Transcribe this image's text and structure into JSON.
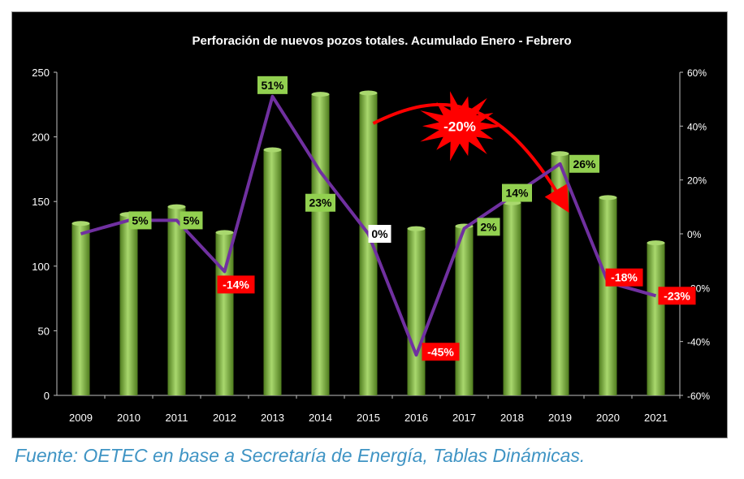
{
  "source_note": "Fuente: OETEC en base a Secretaría de Energía, Tablas Dinámicas.",
  "colors": {
    "background": "#000000",
    "bar_light": "#a9d86e",
    "bar_dark": "#4f7c1e",
    "line": "#7030a0",
    "positive_label_bg": "#92d050",
    "negative_label_bg": "#ff0000",
    "zero_label_bg": "#ffffff",
    "callout": "#ff0000"
  },
  "chart_data": {
    "type": "bar",
    "title": "Perforación de nuevos pozos totales.  Acumulado Enero - Febrero",
    "categories": [
      "2009",
      "2010",
      "2011",
      "2012",
      "2013",
      "2014",
      "2015",
      "2016",
      "2017",
      "2018",
      "2019",
      "2020",
      "2021"
    ],
    "series": [
      {
        "type": "bar",
        "axis": "left",
        "values": [
          133,
          140,
          146,
          126,
          190,
          233,
          234,
          129,
          131,
          149,
          187,
          153,
          118
        ]
      },
      {
        "type": "line",
        "axis": "right",
        "values": [
          null,
          5,
          5,
          -14,
          51,
          23,
          0,
          -45,
          2,
          14,
          26,
          -18,
          -23
        ],
        "labels": [
          "",
          "5%",
          "5%",
          "-14%",
          "51%",
          "23%",
          "0%",
          "-45%",
          "2%",
          "14%",
          "26%",
          "-18%",
          "-23%"
        ]
      }
    ],
    "line_start_value": 0,
    "y_left": {
      "min": 0,
      "max": 250,
      "ticks": [
        "0",
        "50",
        "100",
        "150",
        "200",
        "250"
      ]
    },
    "y_right": {
      "min": -60,
      "max": 60,
      "ticks": [
        "-60%",
        "-40%",
        "-20%",
        "0%",
        "20%",
        "40%",
        "60%"
      ]
    },
    "grid": false,
    "callout": {
      "label": "-20%",
      "from": "2015",
      "to": "2019"
    }
  }
}
